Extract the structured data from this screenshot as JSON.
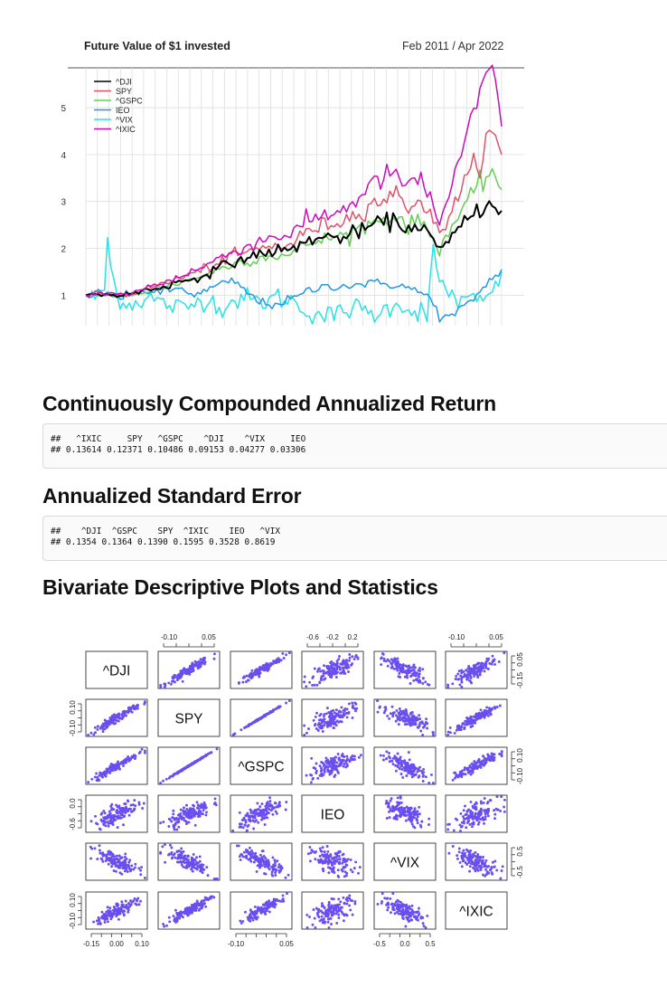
{
  "future_value": {
    "title": "Future Value of $1 invested",
    "date_range": "Feb 2011 / Apr 2022",
    "chart_data": {
      "type": "line",
      "title": "Future Value of $1 invested",
      "subtitle": "Feb 2011 / Apr 2022",
      "xlabel": "",
      "ylabel": "",
      "x_periods": 135,
      "ylim": [
        0.35,
        5.85
      ],
      "yticks": [
        1,
        2,
        3,
        4,
        5
      ],
      "grid": true,
      "legend_position": "top-left",
      "series": [
        {
          "name": "^DJI",
          "color": "#000000",
          "anchors": [
            [
              0,
              1.0
            ],
            [
              6,
              1.02
            ],
            [
              12,
              1.0
            ],
            [
              24,
              1.17
            ],
            [
              36,
              1.38
            ],
            [
              48,
              1.72
            ],
            [
              60,
              1.95
            ],
            [
              66,
              1.95
            ],
            [
              72,
              2.2
            ],
            [
              84,
              2.25
            ],
            [
              92,
              2.48
            ],
            [
              96,
              2.55
            ],
            [
              100,
              2.6
            ],
            [
              104,
              2.38
            ],
            [
              108,
              2.55
            ],
            [
              112,
              2.15
            ],
            [
              114,
              1.9
            ],
            [
              118,
              2.25
            ],
            [
              122,
              2.55
            ],
            [
              128,
              2.92
            ],
            [
              132,
              2.95
            ],
            [
              134,
              2.8
            ]
          ]
        },
        {
          "name": "SPY",
          "color": "#df536b",
          "anchors": [
            [
              0,
              1.0
            ],
            [
              6,
              1.03
            ],
            [
              12,
              1.0
            ],
            [
              24,
              1.22
            ],
            [
              36,
              1.5
            ],
            [
              48,
              1.85
            ],
            [
              60,
              2.05
            ],
            [
              66,
              2.07
            ],
            [
              72,
              2.4
            ],
            [
              84,
              2.62
            ],
            [
              92,
              2.95
            ],
            [
              96,
              3.05
            ],
            [
              100,
              3.15
            ],
            [
              104,
              2.9
            ],
            [
              108,
              3.05
            ],
            [
              112,
              2.55
            ],
            [
              114,
              2.3
            ],
            [
              118,
              2.85
            ],
            [
              122,
              3.35
            ],
            [
              128,
              4.1
            ],
            [
              131,
              4.5
            ],
            [
              133,
              4.1
            ],
            [
              134,
              4.0
            ]
          ]
        },
        {
          "name": "^GSPC",
          "color": "#61d04f",
          "anchors": [
            [
              0,
              1.0
            ],
            [
              6,
              1.02
            ],
            [
              12,
              0.98
            ],
            [
              24,
              1.16
            ],
            [
              36,
              1.38
            ],
            [
              48,
              1.68
            ],
            [
              60,
              1.85
            ],
            [
              66,
              1.85
            ],
            [
              72,
              2.12
            ],
            [
              84,
              2.3
            ],
            [
              92,
              2.55
            ],
            [
              96,
              2.62
            ],
            [
              100,
              2.7
            ],
            [
              104,
              2.48
            ],
            [
              108,
              2.6
            ],
            [
              112,
              2.2
            ],
            [
              114,
              2.0
            ],
            [
              118,
              2.48
            ],
            [
              122,
              2.85
            ],
            [
              128,
              3.45
            ],
            [
              131,
              3.7
            ],
            [
              133,
              3.4
            ],
            [
              134,
              3.25
            ]
          ]
        },
        {
          "name": "IEO",
          "color": "#2297e6",
          "anchors": [
            [
              0,
              1.0
            ],
            [
              6,
              1.05
            ],
            [
              12,
              0.95
            ],
            [
              18,
              1.1
            ],
            [
              24,
              1.05
            ],
            [
              30,
              1.15
            ],
            [
              36,
              1.0
            ],
            [
              42,
              1.2
            ],
            [
              48,
              1.3
            ],
            [
              52,
              1.05
            ],
            [
              56,
              0.85
            ],
            [
              60,
              0.8
            ],
            [
              66,
              0.9
            ],
            [
              72,
              1.1
            ],
            [
              78,
              1.2
            ],
            [
              84,
              1.2
            ],
            [
              90,
              1.25
            ],
            [
              96,
              1.25
            ],
            [
              102,
              1.2
            ],
            [
              108,
              1.05
            ],
            [
              112,
              0.9
            ],
            [
              114,
              0.5
            ],
            [
              118,
              0.55
            ],
            [
              122,
              0.75
            ],
            [
              126,
              1.0
            ],
            [
              130,
              1.3
            ],
            [
              134,
              1.55
            ]
          ]
        },
        {
          "name": "^VIX",
          "color": "#28e2e5",
          "anchors": [
            [
              0,
              1.0
            ],
            [
              4,
              0.95
            ],
            [
              6,
              1.15
            ],
            [
              7,
              2.2
            ],
            [
              8,
              1.6
            ],
            [
              10,
              1.0
            ],
            [
              14,
              0.8
            ],
            [
              20,
              0.95
            ],
            [
              26,
              0.8
            ],
            [
              32,
              0.7
            ],
            [
              38,
              0.95
            ],
            [
              44,
              0.75
            ],
            [
              50,
              0.95
            ],
            [
              56,
              0.85
            ],
            [
              62,
              0.95
            ],
            [
              66,
              0.9
            ],
            [
              70,
              0.7
            ],
            [
              74,
              0.6
            ],
            [
              80,
              0.55
            ],
            [
              86,
              0.75
            ],
            [
              92,
              0.6
            ],
            [
              96,
              0.65
            ],
            [
              100,
              0.9
            ],
            [
              104,
              0.65
            ],
            [
              108,
              0.7
            ],
            [
              110,
              0.55
            ],
            [
              112,
              1.9
            ],
            [
              113,
              1.5
            ],
            [
              116,
              1.1
            ],
            [
              120,
              0.9
            ],
            [
              124,
              0.85
            ],
            [
              128,
              0.9
            ],
            [
              132,
              1.1
            ],
            [
              134,
              1.5
            ]
          ]
        },
        {
          "name": "^IXIC",
          "color": "#cd0bbc",
          "anchors": [
            [
              0,
              1.0
            ],
            [
              6,
              1.03
            ],
            [
              12,
              1.0
            ],
            [
              24,
              1.25
            ],
            [
              36,
              1.55
            ],
            [
              48,
              1.95
            ],
            [
              60,
              2.25
            ],
            [
              66,
              2.3
            ],
            [
              72,
              2.6
            ],
            [
              84,
              2.85
            ],
            [
              92,
              3.35
            ],
            [
              96,
              3.5
            ],
            [
              100,
              3.62
            ],
            [
              104,
              3.25
            ],
            [
              108,
              3.5
            ],
            [
              112,
              2.9
            ],
            [
              114,
              2.5
            ],
            [
              118,
              3.4
            ],
            [
              122,
              4.1
            ],
            [
              126,
              5.1
            ],
            [
              130,
              5.8
            ],
            [
              131,
              5.75
            ],
            [
              133,
              5.2
            ],
            [
              134,
              4.6
            ]
          ]
        }
      ]
    }
  },
  "returns_section": {
    "heading": "Continuously Compounded Annualized Return",
    "line1": "##   ^IXIC     SPY   ^GSPC    ^DJI    ^VIX     IEO",
    "line2": "## 0.13614 0.12371 0.10486 0.09153 0.04277 0.03306"
  },
  "stderr_section": {
    "heading": "Annualized Standard Error",
    "line1": "##    ^DJI  ^GSPC    SPY  ^IXIC    IEO   ^VIX",
    "line2": "## 0.1354 0.1364 0.1390 0.1595 0.3528 0.8619"
  },
  "bivariate_section": {
    "heading": "Bivariate Descriptive Plots and Statistics",
    "chart_data": {
      "type": "scatter",
      "title": "",
      "variables": [
        "^DJI",
        "SPY",
        "^GSPC",
        "IEO",
        "^VIX",
        "^IXIC"
      ],
      "point_color": "#6b4ef0",
      "n_points": 135,
      "correlations_approx": {
        "^DJI-SPY": 0.95,
        "^DJI-^GSPC": 0.95,
        "^DJI-IEO": 0.7,
        "^DJI-^VIX": -0.75,
        "^DJI-^IXIC": 0.85,
        "SPY-^GSPC": 0.999,
        "SPY-IEO": 0.7,
        "SPY-^VIX": -0.75,
        "SPY-^IXIC": 0.92,
        "^GSPC-IEO": 0.7,
        "^GSPC-^VIX": -0.75,
        "^GSPC-^IXIC": 0.92,
        "IEO-^VIX": -0.5,
        "IEO-^IXIC": 0.55,
        "^VIX-^IXIC": -0.7
      },
      "axis_tick_labels": {
        "top": [
          [
            "-0.10",
            "0.05"
          ],
          [
            "-0.6",
            "-0.2",
            "0.2"
          ],
          [
            "-0.10",
            "0.05"
          ]
        ],
        "bottom": [
          [
            "-0.15",
            "0.00",
            "0.10"
          ],
          [
            "-0.10",
            "0.05"
          ],
          [
            "-0.5",
            "0.0",
            "0.5"
          ]
        ],
        "left": [
          [
            "0.10",
            "-0.10"
          ],
          [
            "0.0",
            "-0.6"
          ],
          [
            "0.10",
            "-0.10"
          ]
        ],
        "right": [
          [
            "0.05",
            "-0.15"
          ],
          [
            "0.10",
            "-0.10"
          ],
          [
            "0.5",
            "-0.5"
          ]
        ]
      }
    }
  }
}
